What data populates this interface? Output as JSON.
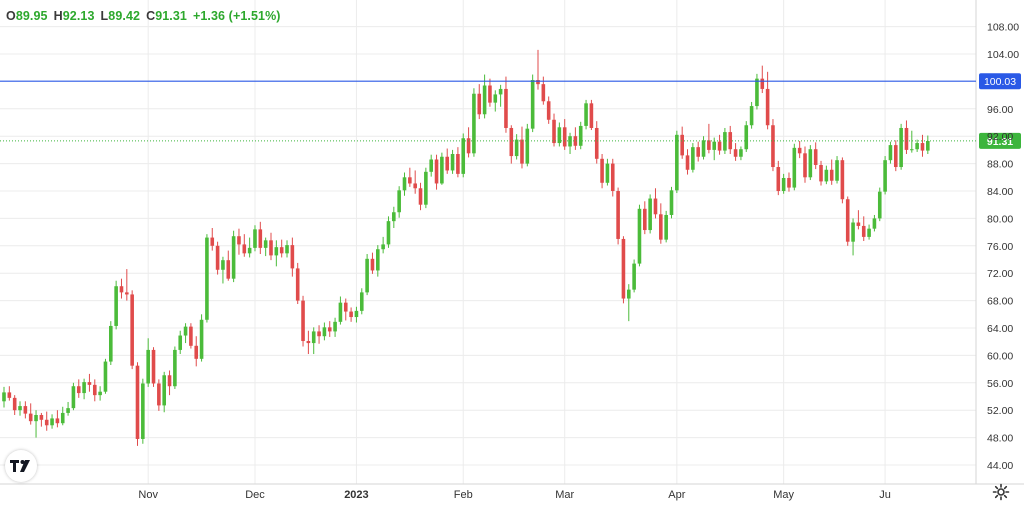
{
  "ohlc": {
    "o_label": "O",
    "o": "89.95",
    "h_label": "H",
    "h": "92.13",
    "l_label": "L",
    "l": "89.42",
    "c_label": "C",
    "c": "91.31",
    "change": "+1.36 (+1.51%)"
  },
  "colors": {
    "up": "#4bbb3a",
    "down": "#e04b4b",
    "hline": "#2a59e6",
    "last_price": "#3cb53c",
    "grid": "#ececec",
    "axis_text": "#333333"
  },
  "icons": {
    "logo": "tradingview-logo-icon",
    "settings": "gear-icon"
  },
  "chart_data": {
    "type": "candlestick",
    "y_ticks": [
      "108.00",
      "104.00",
      "96.00",
      "92.00",
      "88.00",
      "84.00",
      "80.00",
      "76.00",
      "72.00",
      "68.00",
      "64.00",
      "60.00",
      "56.00",
      "52.00",
      "48.00",
      "44.00"
    ],
    "ylim": [
      42,
      110
    ],
    "x_ticks": [
      "Nov",
      "Dec",
      "2023",
      "Feb",
      "Mar",
      "Apr",
      "May",
      "Ju"
    ],
    "horizontal_line": {
      "value": 100.03,
      "label": "100.03"
    },
    "last_price": {
      "value": 91.31,
      "label": "91.31"
    },
    "grid": true,
    "candles": [
      [
        53.3,
        55.4,
        52.4,
        54.6
      ],
      [
        54.6,
        55.5,
        53.4,
        53.8
      ],
      [
        53.8,
        54.2,
        51.3,
        52.0
      ],
      [
        52.0,
        53.3,
        51.2,
        52.6
      ],
      [
        52.6,
        53.3,
        50.8,
        51.5
      ],
      [
        51.5,
        53.0,
        49.9,
        50.4
      ],
      [
        50.4,
        52.0,
        48.0,
        51.3
      ],
      [
        51.3,
        51.6,
        49.6,
        50.6
      ],
      [
        50.6,
        51.8,
        49.0,
        49.8
      ],
      [
        49.8,
        51.4,
        49.3,
        50.8
      ],
      [
        50.8,
        52.0,
        49.5,
        50.1
      ],
      [
        50.1,
        52.5,
        49.8,
        51.6
      ],
      [
        51.6,
        53.2,
        51.2,
        52.3
      ],
      [
        52.3,
        56.0,
        52.0,
        55.5
      ],
      [
        55.5,
        56.5,
        53.8,
        54.5
      ],
      [
        54.5,
        56.6,
        53.6,
        56.1
      ],
      [
        56.1,
        57.3,
        54.7,
        55.7
      ],
      [
        55.7,
        56.5,
        53.3,
        54.2
      ],
      [
        54.2,
        55.5,
        53.4,
        54.7
      ],
      [
        54.7,
        59.5,
        54.4,
        59.1
      ],
      [
        59.1,
        65.0,
        58.6,
        64.3
      ],
      [
        64.3,
        70.9,
        63.8,
        70.1
      ],
      [
        70.1,
        71.2,
        68.3,
        69.2
      ],
      [
        69.2,
        72.6,
        68.0,
        68.9
      ],
      [
        68.9,
        69.5,
        58.0,
        58.5
      ],
      [
        58.5,
        59.0,
        46.8,
        47.8
      ],
      [
        47.8,
        56.6,
        47.1,
        55.9
      ],
      [
        55.9,
        62.5,
        55.4,
        60.8
      ],
      [
        60.8,
        61.2,
        55.4,
        55.9
      ],
      [
        55.9,
        56.5,
        51.9,
        52.7
      ],
      [
        52.7,
        57.6,
        51.7,
        57.1
      ],
      [
        57.1,
        57.8,
        54.2,
        55.5
      ],
      [
        55.5,
        61.3,
        55.1,
        60.8
      ],
      [
        60.8,
        63.6,
        60.2,
        62.9
      ],
      [
        62.9,
        64.7,
        61.8,
        64.2
      ],
      [
        64.2,
        64.7,
        61.0,
        61.4
      ],
      [
        61.4,
        62.8,
        58.4,
        59.5
      ],
      [
        59.5,
        66.0,
        59.1,
        65.2
      ],
      [
        65.2,
        77.7,
        64.8,
        77.2
      ],
      [
        77.2,
        78.6,
        75.3,
        76.0
      ],
      [
        76.0,
        76.6,
        71.8,
        72.5
      ],
      [
        72.5,
        74.4,
        70.5,
        73.9
      ],
      [
        73.9,
        75.3,
        70.9,
        71.2
      ],
      [
        71.2,
        78.2,
        70.7,
        77.4
      ],
      [
        77.4,
        78.5,
        74.7,
        76.2
      ],
      [
        76.2,
        77.7,
        74.4,
        74.9
      ],
      [
        74.9,
        77.2,
        74.3,
        75.7
      ],
      [
        75.7,
        79.0,
        75.2,
        78.4
      ],
      [
        78.4,
        79.5,
        74.8,
        75.7
      ],
      [
        75.7,
        77.2,
        74.5,
        76.8
      ],
      [
        76.8,
        77.9,
        73.9,
        74.6
      ],
      [
        74.6,
        76.8,
        73.0,
        75.8
      ],
      [
        75.8,
        76.9,
        74.3,
        74.9
      ],
      [
        74.9,
        76.8,
        74.3,
        76.1
      ],
      [
        76.1,
        77.2,
        71.5,
        72.7
      ],
      [
        72.7,
        73.5,
        67.5,
        68.0
      ],
      [
        68.0,
        68.7,
        61.3,
        62.1
      ],
      [
        62.1,
        63.6,
        60.2,
        61.8
      ],
      [
        61.8,
        64.1,
        60.2,
        63.5
      ],
      [
        63.5,
        64.4,
        61.7,
        62.8
      ],
      [
        62.8,
        64.8,
        62.2,
        64.1
      ],
      [
        64.1,
        65.0,
        62.7,
        63.5
      ],
      [
        63.5,
        65.5,
        62.7,
        64.9
      ],
      [
        64.9,
        68.6,
        64.5,
        67.7
      ],
      [
        67.7,
        68.3,
        65.1,
        66.4
      ],
      [
        66.4,
        67.0,
        64.9,
        65.6
      ],
      [
        65.6,
        67.1,
        64.8,
        66.5
      ],
      [
        66.5,
        69.8,
        66.0,
        69.2
      ],
      [
        69.2,
        74.8,
        68.8,
        74.1
      ],
      [
        74.1,
        75.0,
        71.9,
        72.4
      ],
      [
        72.4,
        76.1,
        71.5,
        75.5
      ],
      [
        75.5,
        77.3,
        74.9,
        76.2
      ],
      [
        76.2,
        80.3,
        75.7,
        79.6
      ],
      [
        79.6,
        81.7,
        78.6,
        80.9
      ],
      [
        80.9,
        84.7,
        80.1,
        84.1
      ],
      [
        84.1,
        86.7,
        83.3,
        86.0
      ],
      [
        86.0,
        87.4,
        84.6,
        85.1
      ],
      [
        85.1,
        87.0,
        83.6,
        84.4
      ],
      [
        84.4,
        85.2,
        81.2,
        82.0
      ],
      [
        82.0,
        87.4,
        81.5,
        86.8
      ],
      [
        86.8,
        89.3,
        86.1,
        88.6
      ],
      [
        88.6,
        89.3,
        84.2,
        85.1
      ],
      [
        85.1,
        89.6,
        84.9,
        89.0
      ],
      [
        89.0,
        90.2,
        86.5,
        87.0
      ],
      [
        87.0,
        90.0,
        86.5,
        89.4
      ],
      [
        89.4,
        90.4,
        86.0,
        86.5
      ],
      [
        86.5,
        92.4,
        86.0,
        91.7
      ],
      [
        91.7,
        93.3,
        88.9,
        89.5
      ],
      [
        89.5,
        99.0,
        89.0,
        98.2
      ],
      [
        98.2,
        99.6,
        94.5,
        95.2
      ],
      [
        95.2,
        101.0,
        94.6,
        99.4
      ],
      [
        99.4,
        100.4,
        96.3,
        96.9
      ],
      [
        96.9,
        98.7,
        95.6,
        98.1
      ],
      [
        98.1,
        99.5,
        96.3,
        98.9
      ],
      [
        98.9,
        100.7,
        92.5,
        93.2
      ],
      [
        93.2,
        93.6,
        88.0,
        89.1
      ],
      [
        89.1,
        92.3,
        88.6,
        91.5
      ],
      [
        91.5,
        93.4,
        87.3,
        88.0
      ],
      [
        88.0,
        93.8,
        87.6,
        93.1
      ],
      [
        93.1,
        101.0,
        92.6,
        100.2
      ],
      [
        100.2,
        104.6,
        98.8,
        99.6
      ],
      [
        99.6,
        100.7,
        96.6,
        97.1
      ],
      [
        97.1,
        97.8,
        93.8,
        94.4
      ],
      [
        94.4,
        95.3,
        90.5,
        91.0
      ],
      [
        91.0,
        94.0,
        90.5,
        93.3
      ],
      [
        93.3,
        94.5,
        90.0,
        90.5
      ],
      [
        90.5,
        92.5,
        89.4,
        92.0
      ],
      [
        92.0,
        93.3,
        90.0,
        90.6
      ],
      [
        90.6,
        94.1,
        90.1,
        93.5
      ],
      [
        93.5,
        97.3,
        93.0,
        96.8
      ],
      [
        96.8,
        97.3,
        92.9,
        93.2
      ],
      [
        93.2,
        94.2,
        88.0,
        88.7
      ],
      [
        88.7,
        89.4,
        84.4,
        85.2
      ],
      [
        85.2,
        88.7,
        84.8,
        88.0
      ],
      [
        88.0,
        88.7,
        83.2,
        84.0
      ],
      [
        84.0,
        84.5,
        76.2,
        77.0
      ],
      [
        77.0,
        77.4,
        67.6,
        68.3
      ],
      [
        68.3,
        70.4,
        65.0,
        69.6
      ],
      [
        69.6,
        74.0,
        69.2,
        73.4
      ],
      [
        73.4,
        82.0,
        73.0,
        81.4
      ],
      [
        81.4,
        82.5,
        77.7,
        78.3
      ],
      [
        78.3,
        83.5,
        77.8,
        82.9
      ],
      [
        82.9,
        84.4,
        80.0,
        80.6
      ],
      [
        80.6,
        82.2,
        76.3,
        76.9
      ],
      [
        76.9,
        81.1,
        76.5,
        80.5
      ],
      [
        80.5,
        84.6,
        80.0,
        84.1
      ],
      [
        84.1,
        92.8,
        83.7,
        92.2
      ],
      [
        92.2,
        93.4,
        88.7,
        89.2
      ],
      [
        89.2,
        90.1,
        86.4,
        87.1
      ],
      [
        87.1,
        91.0,
        86.7,
        90.4
      ],
      [
        90.4,
        91.2,
        88.3,
        89.0
      ],
      [
        89.0,
        92.0,
        88.6,
        91.4
      ],
      [
        91.4,
        93.8,
        89.5,
        90.0
      ],
      [
        90.0,
        91.8,
        88.5,
        91.2
      ],
      [
        91.2,
        92.2,
        89.3,
        89.9
      ],
      [
        89.9,
        93.2,
        89.4,
        92.6
      ],
      [
        92.6,
        93.5,
        89.4,
        90.1
      ],
      [
        90.1,
        91.0,
        88.4,
        89.0
      ],
      [
        89.0,
        90.5,
        88.5,
        90.1
      ],
      [
        90.1,
        94.2,
        89.7,
        93.6
      ],
      [
        93.6,
        97.0,
        93.1,
        96.4
      ],
      [
        96.4,
        101.1,
        95.9,
        100.4
      ],
      [
        100.4,
        102.3,
        98.3,
        98.9
      ],
      [
        98.9,
        101.4,
        93.0,
        93.6
      ],
      [
        93.6,
        94.5,
        86.9,
        87.5
      ],
      [
        87.5,
        88.4,
        83.4,
        84.0
      ],
      [
        84.0,
        86.5,
        83.6,
        85.9
      ],
      [
        85.9,
        86.7,
        83.9,
        84.5
      ],
      [
        84.5,
        90.9,
        84.1,
        90.3
      ],
      [
        90.3,
        91.3,
        88.8,
        89.5
      ],
      [
        89.5,
        90.5,
        85.2,
        86.0
      ],
      [
        86.0,
        90.7,
        85.6,
        90.1
      ],
      [
        90.1,
        91.1,
        87.2,
        87.8
      ],
      [
        87.8,
        88.4,
        84.8,
        85.4
      ],
      [
        85.4,
        87.7,
        85.0,
        87.1
      ],
      [
        87.1,
        88.6,
        84.9,
        85.5
      ],
      [
        85.5,
        89.1,
        85.1,
        88.5
      ],
      [
        88.5,
        88.9,
        82.2,
        82.8
      ],
      [
        82.8,
        83.2,
        76.0,
        76.6
      ],
      [
        76.6,
        80.0,
        74.6,
        79.4
      ],
      [
        79.4,
        81.2,
        78.4,
        78.9
      ],
      [
        78.9,
        80.3,
        76.7,
        77.3
      ],
      [
        77.3,
        79.1,
        76.9,
        78.5
      ],
      [
        78.5,
        80.5,
        78.1,
        80.0
      ],
      [
        80.0,
        84.5,
        79.6,
        83.9
      ],
      [
        83.9,
        89.1,
        83.5,
        88.5
      ],
      [
        88.5,
        91.2,
        88.0,
        90.7
      ],
      [
        90.7,
        91.4,
        86.9,
        87.5
      ],
      [
        87.5,
        93.8,
        87.1,
        93.2
      ],
      [
        93.2,
        94.3,
        89.4,
        90.0
      ],
      [
        90.0,
        92.8,
        89.6,
        90.1
      ],
      [
        90.1,
        91.5,
        89.7,
        91.0
      ],
      [
        91.0,
        92.2,
        89.0,
        89.9
      ],
      [
        89.9,
        92.1,
        89.4,
        91.3
      ]
    ],
    "month_positions": [
      [
        "Nov",
        27
      ],
      [
        "Dec",
        47
      ],
      [
        "2023",
        66
      ],
      [
        "Feb",
        86
      ],
      [
        "Mar",
        105
      ],
      [
        "Apr",
        126
      ],
      [
        "May",
        146
      ],
      [
        "Ju",
        165
      ]
    ]
  }
}
